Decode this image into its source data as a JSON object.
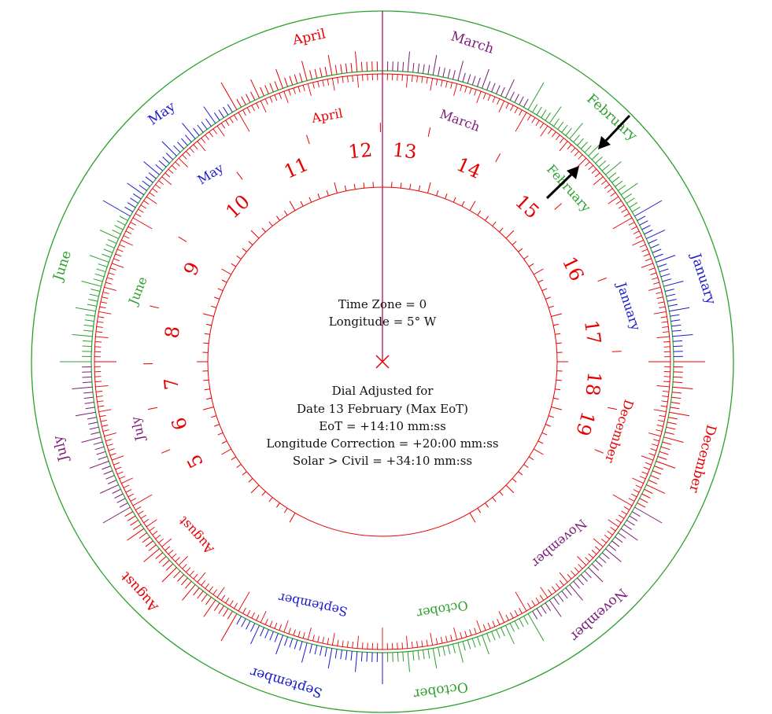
{
  "colors": {
    "red": "#e60000",
    "green": "#2ca02c",
    "purple": "#7b1a78",
    "blue": "#1a1acc",
    "line": "#b01060",
    "arrow": "#000000"
  },
  "center_text": {
    "time_zone": "Time Zone = 0",
    "longitude": "Longitude = 5° W"
  },
  "adjustment": {
    "heading": "Dial Adjusted for",
    "date": "Date 13 February (Max EoT)",
    "eot": "EoT = +14:10 mm:ss",
    "longitude_correction": "Longitude Correction = +20:00 mm:ss",
    "solar_civil": "Solar > Civil = +34:10 mm:ss"
  },
  "hours": [
    "5",
    "6",
    "7",
    "8",
    "9",
    "10",
    "11",
    "12",
    "13",
    "14",
    "15",
    "16",
    "17",
    "18",
    "19"
  ],
  "months": {
    "january": "January",
    "february": "February",
    "march": "March",
    "april": "April",
    "may": "May",
    "june": "June",
    "july": "July",
    "august": "August",
    "september": "September",
    "october": "October",
    "november": "November",
    "december": "December"
  },
  "markers": {
    "center_mark": "cross",
    "arrows": "double-arrow-pointer"
  }
}
